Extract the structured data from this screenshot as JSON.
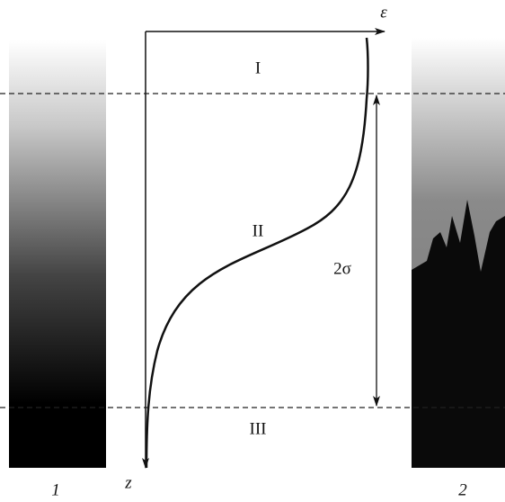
{
  "axes": {
    "horizontal": "ε",
    "vertical": "z"
  },
  "regions": [
    "I",
    "II",
    "III"
  ],
  "width_label": "2σ",
  "panels": [
    "1",
    "2"
  ]
}
